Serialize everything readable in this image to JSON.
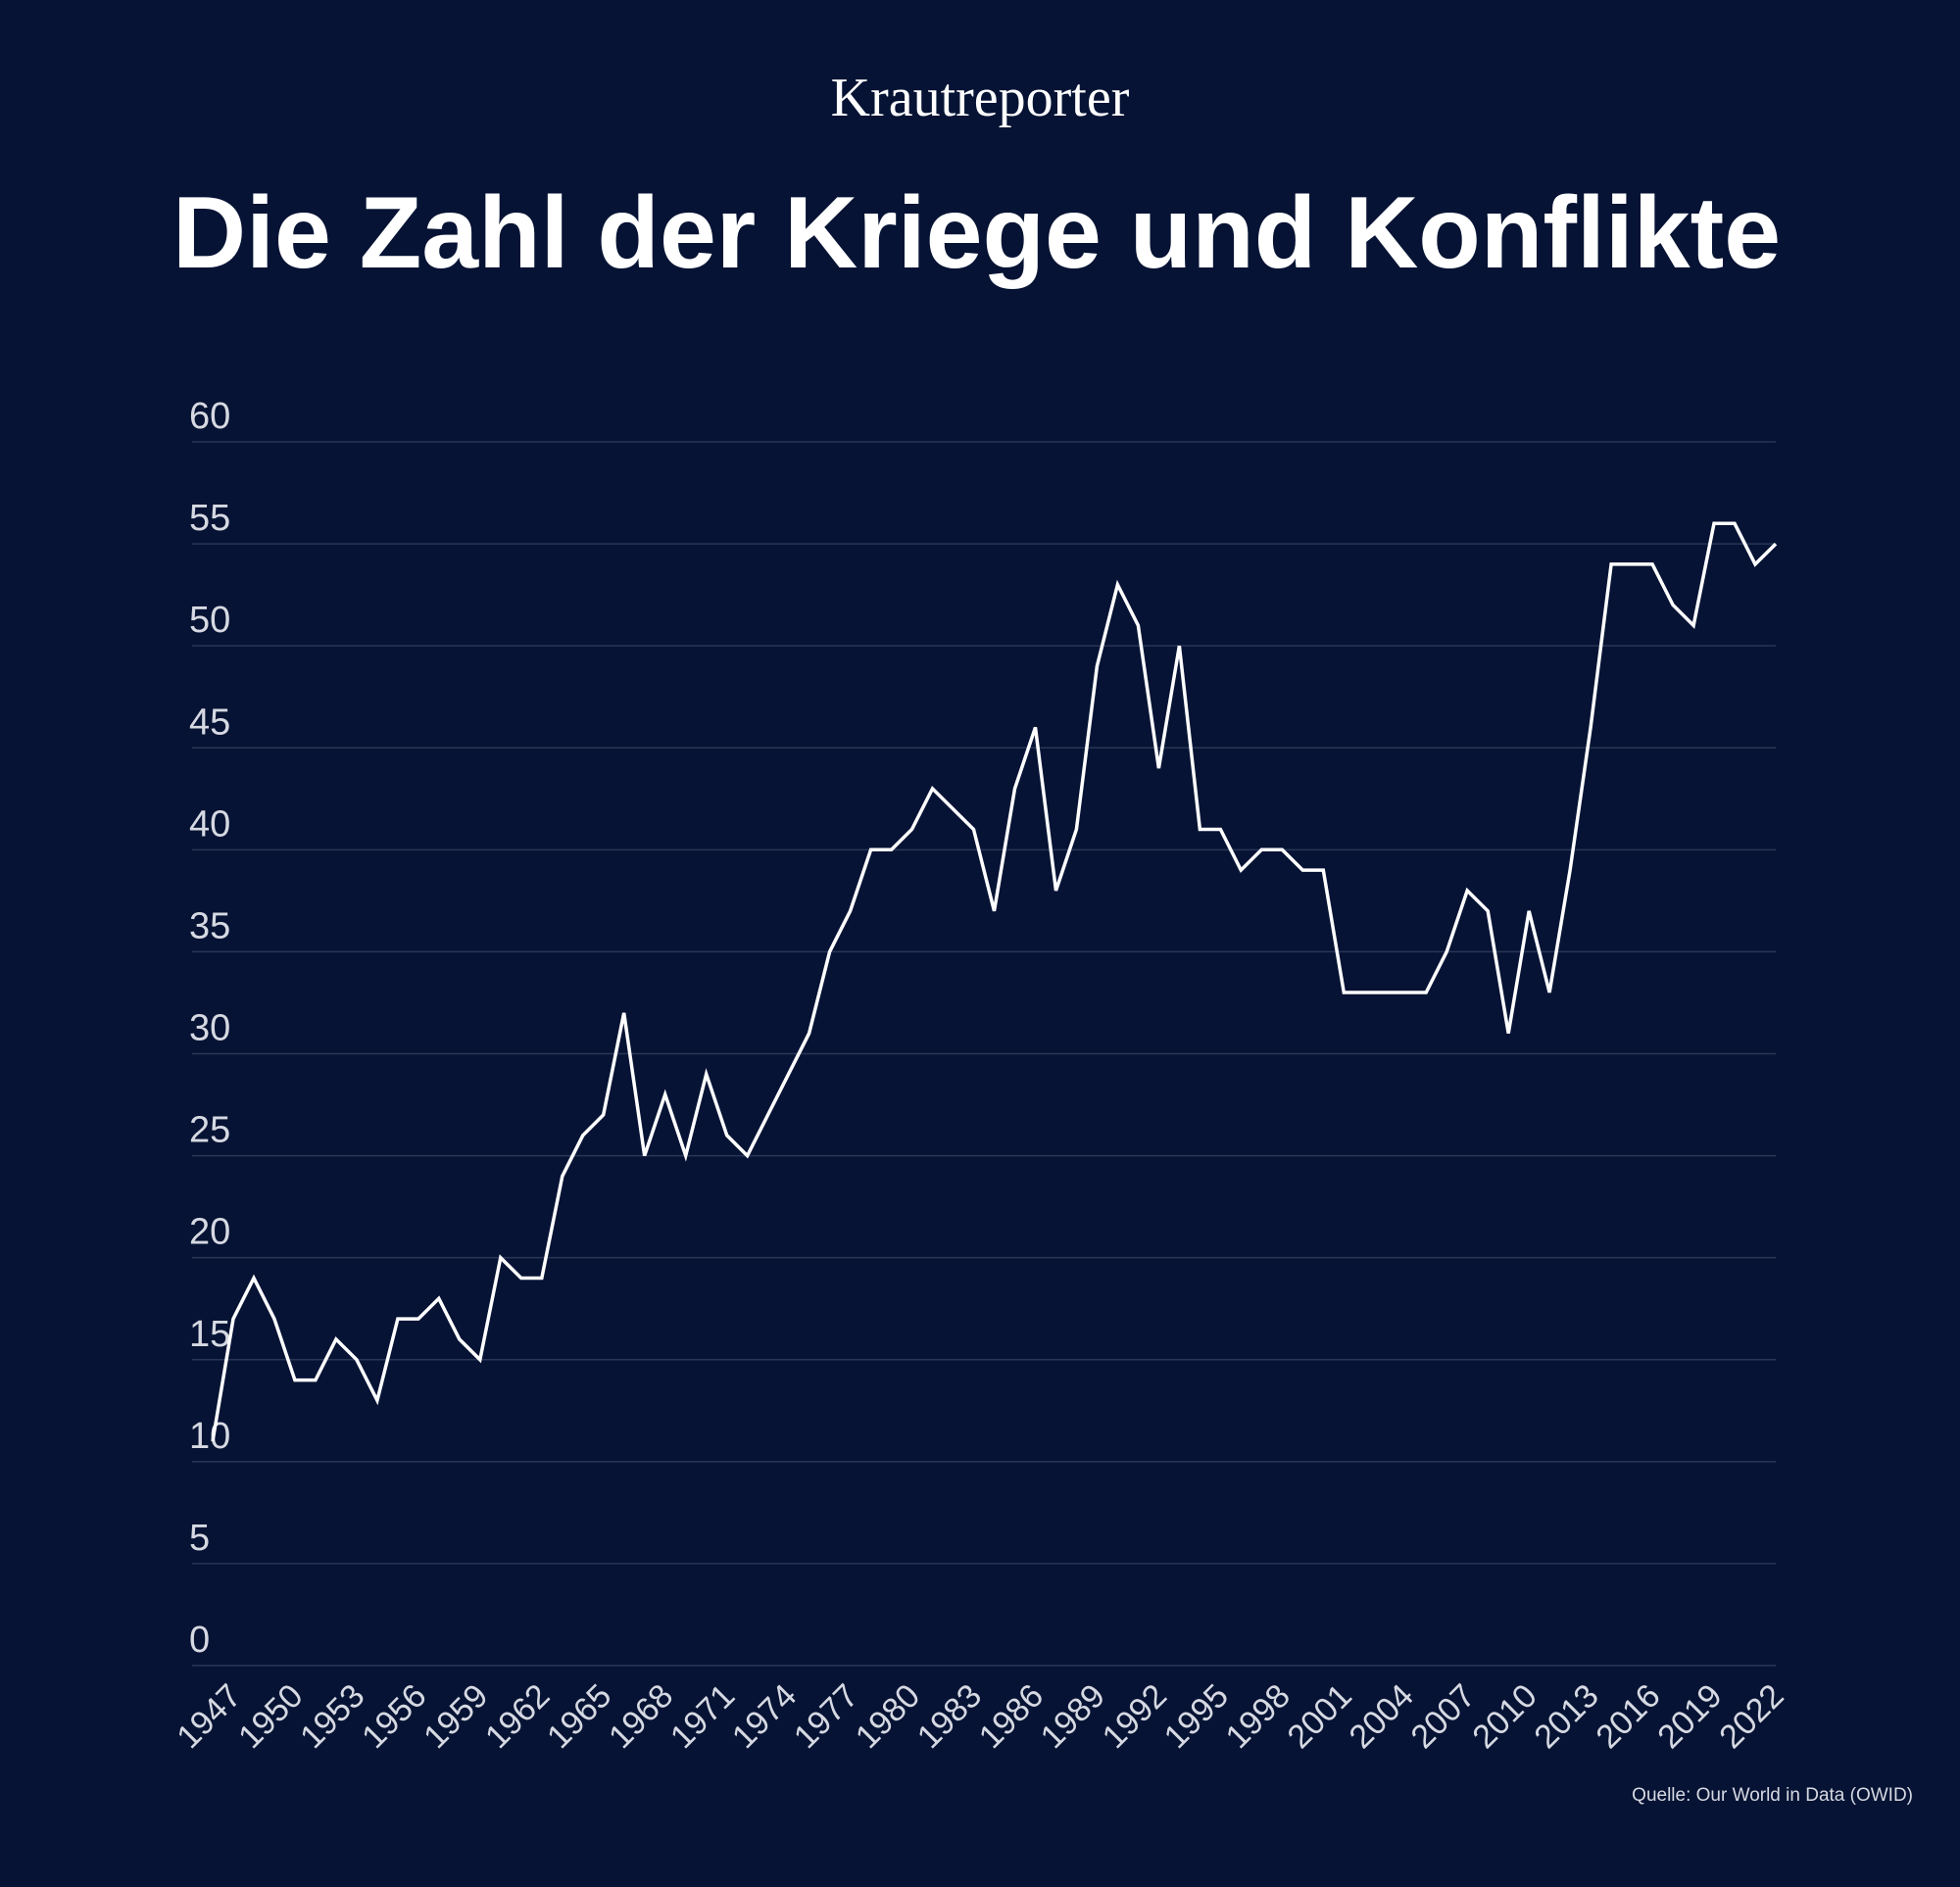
{
  "brand": {
    "logo_text": "Krautreporter"
  },
  "header": {
    "title": "Die Zahl der Kriege und Konflikte"
  },
  "footer": {
    "source": "Quelle: Our World in Data (OWID)"
  },
  "colors": {
    "background": "#061334",
    "line": "#ffffff",
    "grid": "#2a3656",
    "tick_text": "#d6d9e2"
  },
  "chart_data": {
    "type": "line",
    "title": "Die Zahl der Kriege und Konflikte",
    "xlabel": "",
    "ylabel": "",
    "ylim": [
      0,
      60
    ],
    "yticks": [
      0,
      5,
      10,
      15,
      20,
      25,
      30,
      35,
      40,
      45,
      50,
      55,
      60
    ],
    "xticks": [
      1947,
      1950,
      1953,
      1956,
      1959,
      1962,
      1965,
      1968,
      1971,
      1974,
      1977,
      1980,
      1983,
      1986,
      1989,
      1992,
      1995,
      1998,
      2001,
      2004,
      2007,
      2010,
      2013,
      2016,
      2019,
      2022
    ],
    "grid": "horizontal",
    "legend": "none",
    "x": [
      1947,
      1948,
      1949,
      1950,
      1951,
      1952,
      1953,
      1954,
      1955,
      1956,
      1957,
      1958,
      1959,
      1960,
      1961,
      1962,
      1963,
      1964,
      1965,
      1966,
      1967,
      1968,
      1969,
      1970,
      1971,
      1972,
      1973,
      1974,
      1975,
      1976,
      1977,
      1978,
      1979,
      1980,
      1981,
      1982,
      1983,
      1984,
      1985,
      1986,
      1987,
      1988,
      1989,
      1990,
      1991,
      1992,
      1993,
      1994,
      1995,
      1996,
      1997,
      1998,
      1999,
      2000,
      2001,
      2002,
      2003,
      2004,
      2005,
      2006,
      2007,
      2008,
      2009,
      2010,
      2011,
      2012,
      2013,
      2014,
      2015,
      2016,
      2017,
      2018,
      2019,
      2020,
      2021,
      2022
    ],
    "series": [
      {
        "values": [
          11,
          17,
          19,
          17,
          14,
          14,
          16,
          15,
          13,
          17,
          17,
          18,
          16,
          15,
          20,
          19,
          19,
          24,
          26,
          27,
          32,
          25,
          28,
          25,
          29,
          26,
          25,
          27,
          29,
          31,
          35,
          37,
          40,
          40,
          41,
          43,
          42,
          41,
          37,
          43,
          46,
          38,
          41,
          49,
          53,
          51,
          44,
          50,
          41,
          41,
          39,
          40,
          40,
          39,
          39,
          33,
          33,
          33,
          33,
          33,
          35,
          38,
          37,
          31,
          37,
          33,
          39,
          46,
          54,
          54,
          54,
          52,
          51,
          56,
          56,
          54
        ]
      }
    ],
    "last_point": {
      "x": 2023,
      "y": 55
    }
  }
}
